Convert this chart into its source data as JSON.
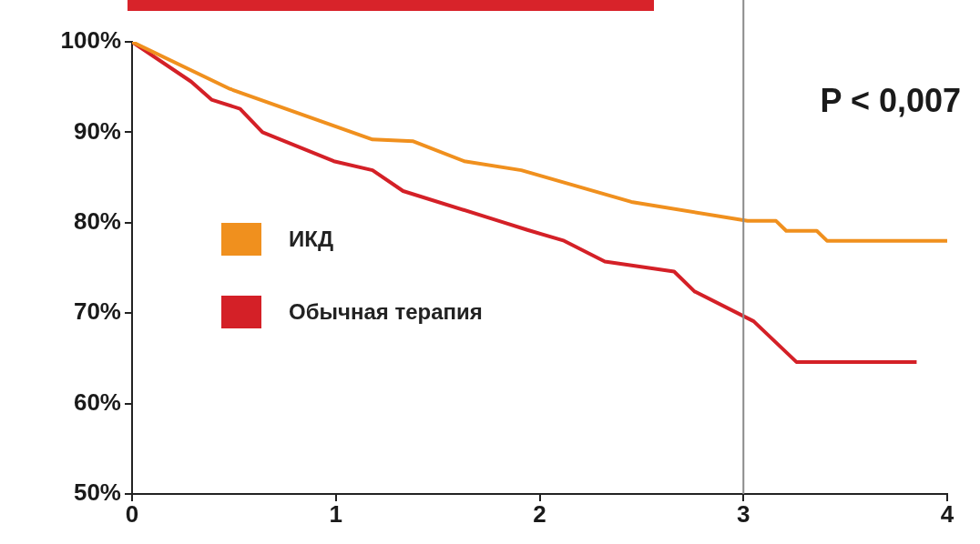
{
  "chart_data": {
    "type": "line",
    "annotations": [
      "P < 0,007"
    ],
    "xlim": [
      0,
      4
    ],
    "xticks": [
      0,
      1,
      2,
      3,
      4
    ],
    "ylim": [
      50,
      100
    ],
    "yticks": [
      {
        "value": 50,
        "label": "50%"
      },
      {
        "value": 60,
        "label": "60%"
      },
      {
        "value": 70,
        "label": "70%"
      },
      {
        "value": 80,
        "label": "80%"
      },
      {
        "value": 90,
        "label": "90%"
      },
      {
        "value": 100,
        "label": "100%"
      }
    ],
    "series": [
      {
        "name": "ИКД",
        "color": "#f0901e",
        "x": [
          0,
          0.48,
          1.18,
          1.38,
          1.63,
          1.91,
          2.45,
          3.02,
          3.16,
          3.21,
          3.36,
          3.41,
          4.0
        ],
        "values": [
          100,
          94.8,
          89.2,
          89.0,
          86.8,
          85.8,
          82.3,
          80.2,
          80.2,
          79.1,
          79.1,
          78.0,
          78.0
        ]
      },
      {
        "name": "Обычная терапия",
        "color": "#d42027",
        "x": [
          0,
          0.29,
          0.39,
          0.53,
          0.64,
          0.99,
          1.18,
          1.33,
          1.8,
          1.94,
          2.12,
          2.32,
          2.66,
          2.76,
          3.05,
          3.26,
          3.85
        ],
        "values": [
          100,
          95.6,
          93.6,
          92.6,
          90.0,
          86.8,
          85.8,
          83.5,
          80.2,
          79.2,
          78.0,
          75.7,
          74.6,
          72.4,
          69.1,
          64.6,
          64.6
        ]
      }
    ],
    "ref_lines": [
      {
        "axis": "x",
        "value": 3,
        "color": "#8a8a8a"
      }
    ],
    "legend": "left",
    "grid": false,
    "marker": "none",
    "line_style": "solid"
  }
}
